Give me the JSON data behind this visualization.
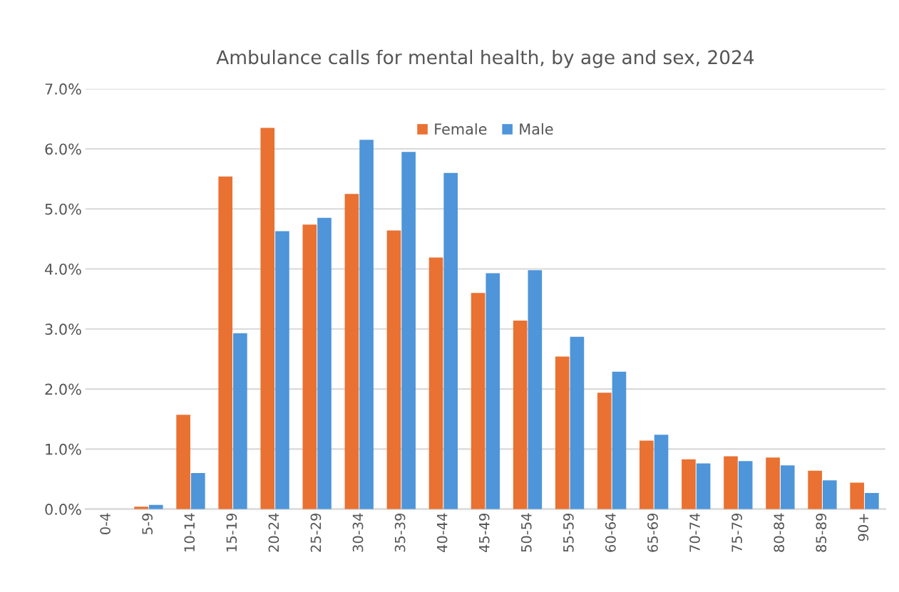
{
  "chart_data": {
    "type": "bar",
    "title": "Ambulance calls for mental health, by age and sex, 2024",
    "categories": [
      "0-4",
      "5-9",
      "10-14",
      "15-19",
      "20-24",
      "25-29",
      "30-34",
      "35-39",
      "40-44",
      "45-49",
      "50-54",
      "55-59",
      "60-64",
      "65-69",
      "70-74",
      "75-79",
      "80-84",
      "85-89",
      "90+"
    ],
    "series": [
      {
        "name": "Female",
        "color": "#e97132",
        "values": [
          0,
          0.04,
          1.57,
          5.54,
          6.35,
          4.74,
          5.25,
          4.64,
          4.19,
          3.6,
          3.14,
          2.54,
          1.94,
          1.14,
          0.83,
          0.88,
          0.86,
          0.64,
          0.44
        ]
      },
      {
        "name": "Male",
        "color": "#4e95d9",
        "values": [
          0,
          0.07,
          0.6,
          2.93,
          4.63,
          4.85,
          6.15,
          5.95,
          5.6,
          3.93,
          3.98,
          2.87,
          2.29,
          1.24,
          0.76,
          0.8,
          0.73,
          0.48,
          0.27
        ]
      }
    ],
    "ylim": [
      0,
      7
    ],
    "yticks": [
      {
        "value": 0,
        "label": "0.0%"
      },
      {
        "value": 1,
        "label": "1.0%"
      },
      {
        "value": 2,
        "label": "2.0%"
      },
      {
        "value": 3,
        "label": "3.0%"
      },
      {
        "value": 4,
        "label": "4.0%"
      },
      {
        "value": 5,
        "label": "5.0%"
      },
      {
        "value": 6,
        "label": "6.0%"
      },
      {
        "value": 7,
        "label": "7.0%"
      }
    ],
    "grid": "y",
    "legend": "top"
  }
}
